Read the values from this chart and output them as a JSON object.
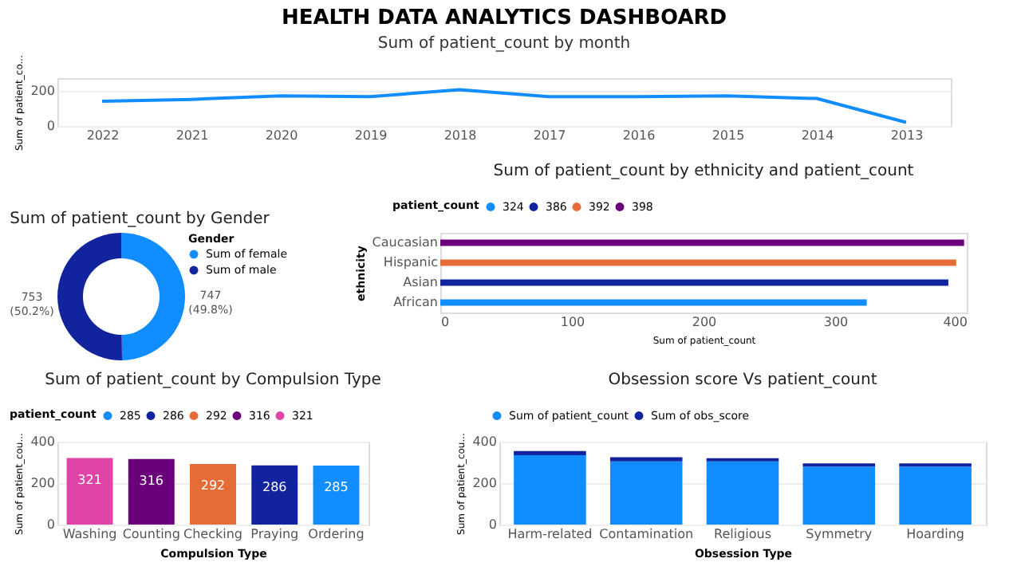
{
  "chart_data": [
    {
      "type": "line",
      "title": "HEALTH DATA ANALYTICS DASHBOARD",
      "subtitle": "Sum of patient_count by month",
      "ylabel": "Sum of patient_co...",
      "categories": [
        "2022",
        "2021",
        "2020",
        "2019",
        "2018",
        "2017",
        "2016",
        "2015",
        "2014",
        "2013"
      ],
      "values": [
        140,
        150,
        170,
        165,
        205,
        165,
        165,
        170,
        155,
        20
      ],
      "color": "#118dff",
      "ylim": [
        0,
        270
      ],
      "yticks": [
        0,
        200
      ],
      "grid": "y",
      "marker": "none"
    },
    {
      "type": "donut",
      "title": "Sum of patient_count by Gender",
      "legend_title": "Gender",
      "legend": "right",
      "categories": [
        "Sum of female",
        "Sum of male"
      ],
      "values": [
        747,
        753
      ],
      "colors": [
        "#118dff",
        "#12239e"
      ],
      "value_labels": [
        "747 (49.8%)",
        "753 (50.2%)"
      ]
    },
    {
      "type": "bar",
      "orientation": "horizontal",
      "title": "Sum of patient_count by ethnicity and patient_count",
      "xlabel": "Sum of patient_count",
      "ylabel": "ethnicity",
      "legend_title": "patient_count",
      "legend": "top left",
      "categories": [
        "Caucasian",
        "Hispanic",
        "Asian",
        "African"
      ],
      "xlim": [
        0,
        400
      ],
      "xticks": [
        0,
        100,
        200,
        300,
        400
      ],
      "series": [
        {
          "name": "324",
          "color": "#118dff",
          "values": [
            null,
            null,
            null,
            324
          ]
        },
        {
          "name": "386",
          "color": "#12239e",
          "values": [
            null,
            null,
            386,
            null
          ]
        },
        {
          "name": "392",
          "color": "#e66c37",
          "values": [
            null,
            392,
            null,
            null
          ]
        },
        {
          "name": "398",
          "color": "#6b007b",
          "values": [
            398,
            null,
            null,
            null
          ]
        }
      ]
    },
    {
      "type": "bar",
      "title": "Sum of patient_count by Compulsion Type",
      "xlabel": "Compulsion Type",
      "ylabel": "Sum of patient_cou...",
      "legend_title": "patient_count",
      "legend": "top left",
      "categories": [
        "Washing",
        "Counting",
        "Checking",
        "Praying",
        "Ordering"
      ],
      "ylim": [
        0,
        400
      ],
      "yticks": [
        0,
        200,
        400
      ],
      "grid": "y",
      "data_labels": true,
      "series": [
        {
          "name": "285",
          "color": "#118dff",
          "values": [
            null,
            null,
            null,
            null,
            285
          ]
        },
        {
          "name": "286",
          "color": "#12239e",
          "values": [
            null,
            null,
            null,
            286,
            null
          ]
        },
        {
          "name": "292",
          "color": "#e66c37",
          "values": [
            null,
            null,
            292,
            null,
            null
          ]
        },
        {
          "name": "316",
          "color": "#6b007b",
          "values": [
            null,
            316,
            null,
            null,
            null
          ]
        },
        {
          "name": "321",
          "color": "#e044a7",
          "values": [
            321,
            null,
            null,
            null,
            null
          ]
        }
      ]
    },
    {
      "type": "bar",
      "stacked": true,
      "title": "Obsession score Vs patient_count",
      "xlabel": "Obsession Type",
      "ylabel": "Sum of patient_cou...",
      "legend": "top left",
      "categories": [
        "Harm-related",
        "Contamination",
        "Religious",
        "Symmetry",
        "Hoarding"
      ],
      "ylim": [
        0,
        400
      ],
      "yticks": [
        0,
        200,
        400
      ],
      "grid": "y",
      "series": [
        {
          "name": "Sum of patient_count",
          "color": "#118dff",
          "values": [
            335,
            305,
            305,
            280,
            280
          ]
        },
        {
          "name": "Sum of obs_score",
          "color": "#12239e",
          "values": [
            20,
            20,
            15,
            15,
            15
          ]
        }
      ]
    }
  ]
}
